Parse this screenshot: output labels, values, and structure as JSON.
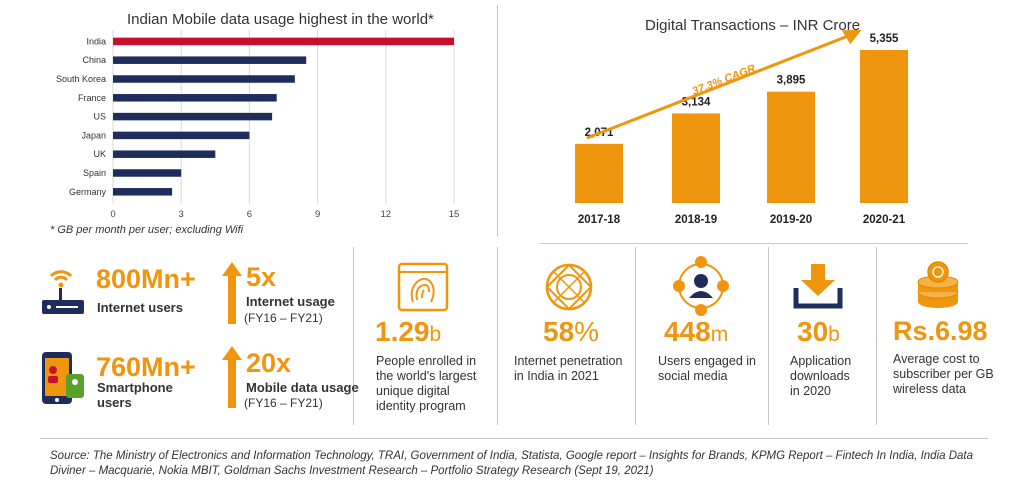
{
  "left_chart": {
    "title": "Indian Mobile data usage highest in the world*",
    "footnote": "* GB per month per user; excluding Wifi"
  },
  "right_chart": {
    "title": "Digital Transactions – INR Crore",
    "cagr": "37.3% CAGR"
  },
  "chart_data": [
    {
      "type": "bar",
      "orientation": "horizontal",
      "title": "Indian Mobile data usage highest in the world*",
      "categories": [
        "India",
        "China",
        "South Korea",
        "France",
        "US",
        "Japan",
        "UK",
        "Spain",
        "Germany"
      ],
      "values": [
        15,
        8.5,
        8,
        7.2,
        7,
        6,
        4.5,
        3,
        2.6
      ],
      "xlim": [
        0,
        15
      ],
      "xticks": [
        "0",
        "3",
        "6",
        "9",
        "12",
        "15"
      ],
      "grid": true,
      "colors": {
        "highlight": "#c8102e",
        "default": "#1f2d5c"
      }
    },
    {
      "type": "bar",
      "title": "Digital Transactions – INR Crore",
      "categories": [
        "2017-18",
        "2018-19",
        "2019-20",
        "2020-21"
      ],
      "values": [
        2071,
        3134,
        3895,
        5355
      ],
      "value_labels": [
        "2,071",
        "3,134",
        "3,895",
        "5,355"
      ],
      "annotation": "37.3% CAGR",
      "colors": {
        "bar": "#f0950e"
      }
    }
  ],
  "stats_left": [
    {
      "icon": "router-wifi-icon",
      "value": "800Mn+",
      "label": "Internet users",
      "mult": "5x",
      "mult_label": "Internet usage",
      "period": "(FY16 – FY21)"
    },
    {
      "icon": "smartphone-icon",
      "value": "760Mn+",
      "label_line1": "Smartphone",
      "label_line2": "users",
      "mult": "20x",
      "mult_label": "Mobile data usage",
      "period": "(FY16 – FY21)"
    }
  ],
  "stats": [
    {
      "icon": "fingerprint-icon",
      "value": "1.29",
      "unit": "b",
      "lines": [
        "People enrolled in",
        "the world's largest",
        "unique digital",
        "identity program"
      ]
    },
    {
      "icon": "globe-icon",
      "value": "58",
      "unit": "%",
      "lines": [
        "Internet penetration",
        "in India in 2021"
      ]
    },
    {
      "icon": "social-network-icon",
      "value": "448",
      "unit": "m",
      "lines": [
        "Users engaged in",
        "social media"
      ]
    },
    {
      "icon": "download-icon",
      "value": "30",
      "unit": "b",
      "lines": [
        "Application",
        "downloads",
        "in 2020"
      ]
    },
    {
      "icon": "coins-icon",
      "value": "Rs.6.98",
      "unit": "",
      "lines": [
        "Average cost to",
        "subscriber per GB",
        "wireless data"
      ]
    }
  ],
  "source": {
    "line1": "Source: The Ministry of Electronics and Information Technology, TRAI, Government of India, Statista, Google report – Insights for Brands, KPMG Report – Fintech In India, India Data",
    "line2": "Diviner – Macquarie, Nokia MBIT, Goldman Sachs Investment Research – Portfolio Strategy Research (Sept 19, 2021)"
  },
  "colors": {
    "accent": "#f0950e",
    "navy": "#1f2d5c",
    "red": "#c8102e"
  }
}
